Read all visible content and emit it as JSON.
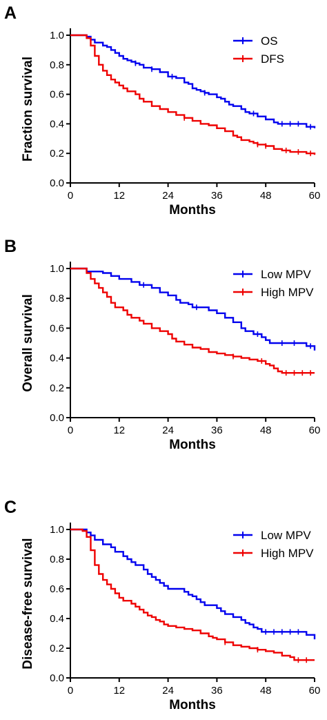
{
  "chart_data": [
    {
      "type": "line",
      "panel_label": "A",
      "xlabel": "Months",
      "ylabel": "Fraction survival",
      "xlim": [
        0,
        60
      ],
      "ylim": [
        0,
        1.0
      ],
      "x_ticks": [
        "0",
        "12",
        "24",
        "36",
        "48",
        "60"
      ],
      "y_ticks": [
        "0.0",
        "0.2",
        "0.4",
        "0.6",
        "0.8",
        "1.0"
      ],
      "legend_position": "top-right",
      "series": [
        {
          "name": "OS",
          "color": "#0000ee",
          "points": [
            [
              0,
              1.0
            ],
            [
              4,
              0.99
            ],
            [
              5,
              0.97
            ],
            [
              6,
              0.95
            ],
            [
              8,
              0.93
            ],
            [
              9,
              0.92
            ],
            [
              10,
              0.9
            ],
            [
              11,
              0.88
            ],
            [
              12,
              0.86
            ],
            [
              13,
              0.84
            ],
            [
              14,
              0.83
            ],
            [
              15,
              0.82
            ],
            [
              16,
              0.81
            ],
            [
              17,
              0.8
            ],
            [
              18,
              0.78
            ],
            [
              20,
              0.77
            ],
            [
              22,
              0.75
            ],
            [
              24,
              0.72
            ],
            [
              26,
              0.71
            ],
            [
              28,
              0.68
            ],
            [
              29,
              0.67
            ],
            [
              30,
              0.64
            ],
            [
              31,
              0.63
            ],
            [
              32,
              0.62
            ],
            [
              33,
              0.61
            ],
            [
              34,
              0.6
            ],
            [
              36,
              0.58
            ],
            [
              37,
              0.57
            ],
            [
              38,
              0.55
            ],
            [
              39,
              0.53
            ],
            [
              40,
              0.52
            ],
            [
              42,
              0.5
            ],
            [
              43,
              0.48
            ],
            [
              44,
              0.47
            ],
            [
              46,
              0.45
            ],
            [
              48,
              0.43
            ],
            [
              50,
              0.41
            ],
            [
              51,
              0.4
            ],
            [
              58,
              0.38
            ],
            [
              60,
              0.37
            ]
          ],
          "censored": [
            [
              16,
              0.81
            ],
            [
              20,
              0.77
            ],
            [
              25,
              0.72
            ],
            [
              33,
              0.61
            ],
            [
              45,
              0.47
            ],
            [
              52,
              0.4
            ],
            [
              54,
              0.4
            ],
            [
              56,
              0.4
            ],
            [
              59,
              0.38
            ]
          ]
        },
        {
          "name": "DFS",
          "color": "#ee0000",
          "points": [
            [
              0,
              1.0
            ],
            [
              4,
              0.98
            ],
            [
              5,
              0.93
            ],
            [
              6,
              0.86
            ],
            [
              7,
              0.8
            ],
            [
              8,
              0.76
            ],
            [
              9,
              0.73
            ],
            [
              10,
              0.7
            ],
            [
              11,
              0.68
            ],
            [
              12,
              0.66
            ],
            [
              13,
              0.64
            ],
            [
              14,
              0.62
            ],
            [
              16,
              0.6
            ],
            [
              17,
              0.57
            ],
            [
              18,
              0.55
            ],
            [
              20,
              0.52
            ],
            [
              22,
              0.5
            ],
            [
              24,
              0.48
            ],
            [
              26,
              0.46
            ],
            [
              28,
              0.44
            ],
            [
              30,
              0.42
            ],
            [
              32,
              0.4
            ],
            [
              34,
              0.39
            ],
            [
              36,
              0.37
            ],
            [
              38,
              0.35
            ],
            [
              40,
              0.32
            ],
            [
              41,
              0.31
            ],
            [
              42,
              0.29
            ],
            [
              44,
              0.28
            ],
            [
              45,
              0.27
            ],
            [
              46,
              0.26
            ],
            [
              48,
              0.25
            ],
            [
              50,
              0.23
            ],
            [
              52,
              0.22
            ],
            [
              54,
              0.21
            ],
            [
              58,
              0.2
            ],
            [
              60,
              0.19
            ]
          ],
          "censored": [
            [
              28,
              0.44
            ],
            [
              46,
              0.26
            ],
            [
              48,
              0.25
            ],
            [
              53,
              0.22
            ],
            [
              56,
              0.21
            ],
            [
              59,
              0.2
            ]
          ]
        }
      ]
    },
    {
      "type": "line",
      "panel_label": "B",
      "xlabel": "Months",
      "ylabel": "Overall survival",
      "xlim": [
        0,
        60
      ],
      "ylim": [
        0,
        1.0
      ],
      "x_ticks": [
        "0",
        "12",
        "24",
        "36",
        "48",
        "60"
      ],
      "y_ticks": [
        "0.0",
        "0.2",
        "0.4",
        "0.6",
        "0.8",
        "1.0"
      ],
      "legend_position": "top-right",
      "series": [
        {
          "name": "Low MPV",
          "color": "#0000ee",
          "points": [
            [
              0,
              1.0
            ],
            [
              4,
              0.98
            ],
            [
              8,
              0.97
            ],
            [
              10,
              0.95
            ],
            [
              12,
              0.93
            ],
            [
              15,
              0.91
            ],
            [
              17,
              0.89
            ],
            [
              20,
              0.87
            ],
            [
              22,
              0.84
            ],
            [
              24,
              0.82
            ],
            [
              26,
              0.79
            ],
            [
              27,
              0.77
            ],
            [
              29,
              0.76
            ],
            [
              30,
              0.74
            ],
            [
              34,
              0.72
            ],
            [
              36,
              0.7
            ],
            [
              38,
              0.67
            ],
            [
              40,
              0.64
            ],
            [
              42,
              0.6
            ],
            [
              43,
              0.58
            ],
            [
              45,
              0.56
            ],
            [
              47,
              0.54
            ],
            [
              48,
              0.52
            ],
            [
              49,
              0.5
            ],
            [
              58,
              0.48
            ],
            [
              60,
              0.45
            ]
          ],
          "censored": [
            [
              18,
              0.89
            ],
            [
              31,
              0.74
            ],
            [
              46,
              0.56
            ],
            [
              52,
              0.5
            ],
            [
              55,
              0.5
            ],
            [
              59,
              0.48
            ]
          ]
        },
        {
          "name": "High MPV",
          "color": "#ee0000",
          "points": [
            [
              0,
              1.0
            ],
            [
              4,
              0.97
            ],
            [
              5,
              0.93
            ],
            [
              6,
              0.9
            ],
            [
              7,
              0.87
            ],
            [
              8,
              0.84
            ],
            [
              9,
              0.81
            ],
            [
              10,
              0.77
            ],
            [
              11,
              0.74
            ],
            [
              13,
              0.72
            ],
            [
              14,
              0.69
            ],
            [
              15,
              0.67
            ],
            [
              17,
              0.65
            ],
            [
              18,
              0.63
            ],
            [
              20,
              0.6
            ],
            [
              22,
              0.58
            ],
            [
              24,
              0.56
            ],
            [
              25,
              0.53
            ],
            [
              26,
              0.51
            ],
            [
              28,
              0.49
            ],
            [
              30,
              0.47
            ],
            [
              32,
              0.46
            ],
            [
              34,
              0.44
            ],
            [
              36,
              0.43
            ],
            [
              38,
              0.42
            ],
            [
              40,
              0.41
            ],
            [
              42,
              0.4
            ],
            [
              44,
              0.39
            ],
            [
              46,
              0.38
            ],
            [
              48,
              0.36
            ],
            [
              49,
              0.35
            ],
            [
              50,
              0.33
            ],
            [
              51,
              0.31
            ],
            [
              52,
              0.3
            ],
            [
              60,
              0.3
            ]
          ],
          "censored": [
            [
              40,
              0.41
            ],
            [
              47,
              0.38
            ],
            [
              53,
              0.3
            ],
            [
              55,
              0.3
            ],
            [
              57,
              0.3
            ],
            [
              59,
              0.3
            ]
          ]
        }
      ]
    },
    {
      "type": "line",
      "panel_label": "C",
      "xlabel": "Months",
      "ylabel": "Disease-free survival",
      "xlim": [
        0,
        60
      ],
      "ylim": [
        0,
        1.0
      ],
      "x_ticks": [
        "0",
        "12",
        "24",
        "36",
        "48",
        "60"
      ],
      "y_ticks": [
        "0.0",
        "0.2",
        "0.4",
        "0.6",
        "0.8",
        "1.0"
      ],
      "legend_position": "top-right",
      "series": [
        {
          "name": "Low MPV",
          "color": "#0000ee",
          "points": [
            [
              0,
              1.0
            ],
            [
              4,
              0.98
            ],
            [
              5,
              0.96
            ],
            [
              6,
              0.93
            ],
            [
              8,
              0.9
            ],
            [
              10,
              0.88
            ],
            [
              11,
              0.85
            ],
            [
              13,
              0.82
            ],
            [
              14,
              0.8
            ],
            [
              15,
              0.78
            ],
            [
              16,
              0.76
            ],
            [
              18,
              0.73
            ],
            [
              19,
              0.7
            ],
            [
              20,
              0.68
            ],
            [
              21,
              0.66
            ],
            [
              22,
              0.64
            ],
            [
              23,
              0.62
            ],
            [
              24,
              0.6
            ],
            [
              28,
              0.58
            ],
            [
              29,
              0.56
            ],
            [
              30,
              0.55
            ],
            [
              31,
              0.53
            ],
            [
              32,
              0.51
            ],
            [
              33,
              0.49
            ],
            [
              36,
              0.47
            ],
            [
              37,
              0.45
            ],
            [
              38,
              0.43
            ],
            [
              40,
              0.41
            ],
            [
              42,
              0.39
            ],
            [
              43,
              0.37
            ],
            [
              44,
              0.36
            ],
            [
              45,
              0.34
            ],
            [
              46,
              0.33
            ],
            [
              47,
              0.31
            ],
            [
              58,
              0.29
            ],
            [
              60,
              0.26
            ]
          ],
          "censored": [
            [
              48,
              0.31
            ],
            [
              50,
              0.31
            ],
            [
              52,
              0.31
            ],
            [
              54,
              0.31
            ],
            [
              56,
              0.31
            ]
          ]
        },
        {
          "name": "High MPV",
          "color": "#ee0000",
          "points": [
            [
              0,
              1.0
            ],
            [
              3,
              0.99
            ],
            [
              4,
              0.95
            ],
            [
              5,
              0.86
            ],
            [
              6,
              0.76
            ],
            [
              7,
              0.7
            ],
            [
              8,
              0.66
            ],
            [
              9,
              0.63
            ],
            [
              10,
              0.6
            ],
            [
              11,
              0.57
            ],
            [
              12,
              0.54
            ],
            [
              13,
              0.52
            ],
            [
              15,
              0.5
            ],
            [
              16,
              0.48
            ],
            [
              17,
              0.46
            ],
            [
              18,
              0.44
            ],
            [
              19,
              0.42
            ],
            [
              20,
              0.41
            ],
            [
              21,
              0.39
            ],
            [
              22,
              0.38
            ],
            [
              23,
              0.36
            ],
            [
              24,
              0.35
            ],
            [
              26,
              0.34
            ],
            [
              28,
              0.33
            ],
            [
              30,
              0.32
            ],
            [
              32,
              0.3
            ],
            [
              34,
              0.28
            ],
            [
              35,
              0.27
            ],
            [
              36,
              0.26
            ],
            [
              38,
              0.24
            ],
            [
              40,
              0.22
            ],
            [
              42,
              0.21
            ],
            [
              44,
              0.2
            ],
            [
              46,
              0.19
            ],
            [
              48,
              0.18
            ],
            [
              50,
              0.17
            ],
            [
              52,
              0.15
            ],
            [
              54,
              0.14
            ],
            [
              55,
              0.12
            ],
            [
              60,
              0.12
            ]
          ],
          "censored": [
            [
              38,
              0.24
            ],
            [
              46,
              0.19
            ],
            [
              56,
              0.12
            ],
            [
              58,
              0.12
            ]
          ]
        }
      ]
    }
  ]
}
